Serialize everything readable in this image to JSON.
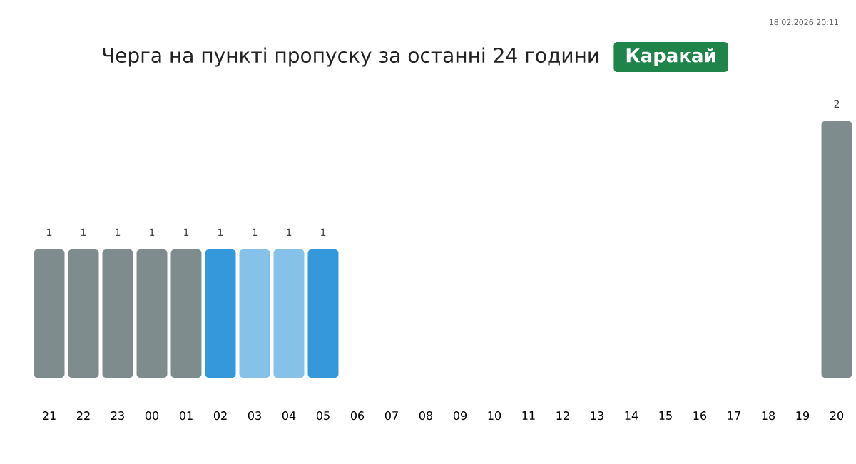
{
  "chart_data": {
    "type": "bar",
    "title": "Черга на пункті пропуску за останні 24 години",
    "subtitle": "Каракай",
    "annotations": [
      "18.02.2026 20:11"
    ],
    "categories": [
      "21",
      "22",
      "23",
      "00",
      "01",
      "02",
      "03",
      "04",
      "05",
      "06",
      "07",
      "08",
      "09",
      "10",
      "11",
      "12",
      "13",
      "14",
      "15",
      "16",
      "17",
      "18",
      "19",
      "20"
    ],
    "values": [
      1,
      1,
      1,
      1,
      1,
      1,
      1,
      1,
      1,
      null,
      null,
      null,
      null,
      null,
      null,
      null,
      null,
      null,
      null,
      null,
      null,
      null,
      null,
      2
    ],
    "colors": [
      "#7f8c8d",
      "#7f8c8d",
      "#7f8c8d",
      "#7f8c8d",
      "#7f8c8d",
      "#3498db",
      "#85c1e9",
      "#85c1e9",
      "#3498db",
      "#7f8c8d",
      "#7f8c8d",
      "#7f8c8d",
      "#7f8c8d",
      "#7f8c8d",
      "#7f8c8d",
      "#7f8c8d",
      "#7f8c8d",
      "#7f8c8d",
      "#7f8c8d",
      "#7f8c8d",
      "#7f8c8d",
      "#7f8c8d",
      "#7f8c8d",
      "#7f8c8d"
    ],
    "data_labels": true
  }
}
